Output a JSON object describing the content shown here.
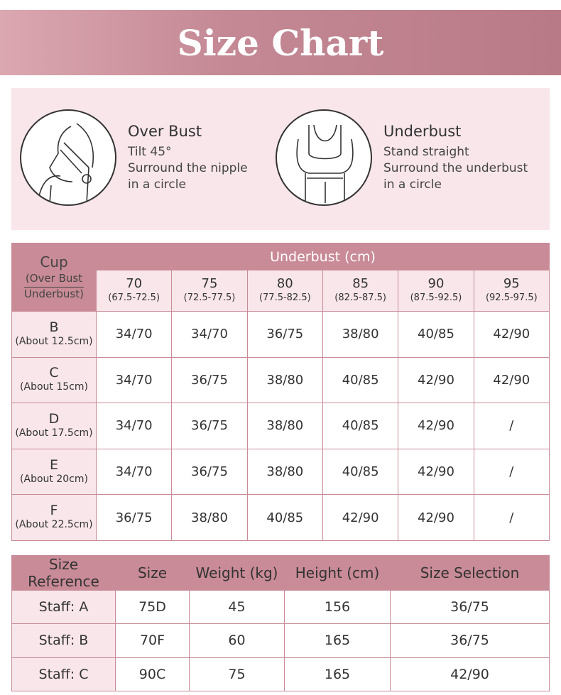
{
  "title": "Size Chart",
  "guides": [
    {
      "title": "Over Bust",
      "lines": [
        "Tilt 45°",
        "Surround the nipple",
        "in a circle"
      ],
      "icon": "over-bust-illustration"
    },
    {
      "title": "Underbust",
      "lines": [
        "Stand straight",
        "Surround the underbust",
        "in a circle"
      ],
      "icon": "underbust-illustration"
    }
  ],
  "size_table": {
    "cup_header": "Cup",
    "cup_sub1": "(Over Bust",
    "cup_sub2": "Underbust)",
    "underbust_header": "Underbust (cm)",
    "columns": [
      {
        "size": "70",
        "range": "(67.5-72.5)"
      },
      {
        "size": "75",
        "range": "(72.5-77.5)"
      },
      {
        "size": "80",
        "range": "(77.5-82.5)"
      },
      {
        "size": "85",
        "range": "(82.5-87.5)"
      },
      {
        "size": "90",
        "range": "(87.5-92.5)"
      },
      {
        "size": "95",
        "range": "(92.5-97.5)"
      }
    ],
    "rows": [
      {
        "cup": "B",
        "diff": "(About 12.5cm)",
        "values": [
          "34/70",
          "34/70",
          "36/75",
          "38/80",
          "40/85",
          "42/90"
        ]
      },
      {
        "cup": "C",
        "diff": "(About 15cm)",
        "values": [
          "34/70",
          "36/75",
          "38/80",
          "40/85",
          "42/90",
          "42/90"
        ]
      },
      {
        "cup": "D",
        "diff": "(About 17.5cm)",
        "values": [
          "34/70",
          "36/75",
          "38/80",
          "40/85",
          "42/90",
          "/"
        ]
      },
      {
        "cup": "E",
        "diff": "(About 20cm)",
        "values": [
          "34/70",
          "36/75",
          "38/80",
          "40/85",
          "42/90",
          "/"
        ]
      },
      {
        "cup": "F",
        "diff": "(About 22.5cm)",
        "values": [
          "36/75",
          "38/80",
          "40/85",
          "42/90",
          "42/90",
          "/"
        ]
      }
    ]
  },
  "reference_table": {
    "headers": [
      "Size Reference",
      "Size",
      "Weight (kg)",
      "Height (cm)",
      "Size Selection"
    ],
    "rows": [
      [
        "Staff: A",
        "75D",
        "45",
        "156",
        "36/75"
      ],
      [
        "Staff: B",
        "70F",
        "60",
        "165",
        "36/75"
      ],
      [
        "Staff: C",
        "90C",
        "75",
        "165",
        "42/90"
      ]
    ]
  },
  "colors": {
    "header": "#c98b97",
    "light": "#f8e6ea",
    "banner": "#c48995"
  }
}
